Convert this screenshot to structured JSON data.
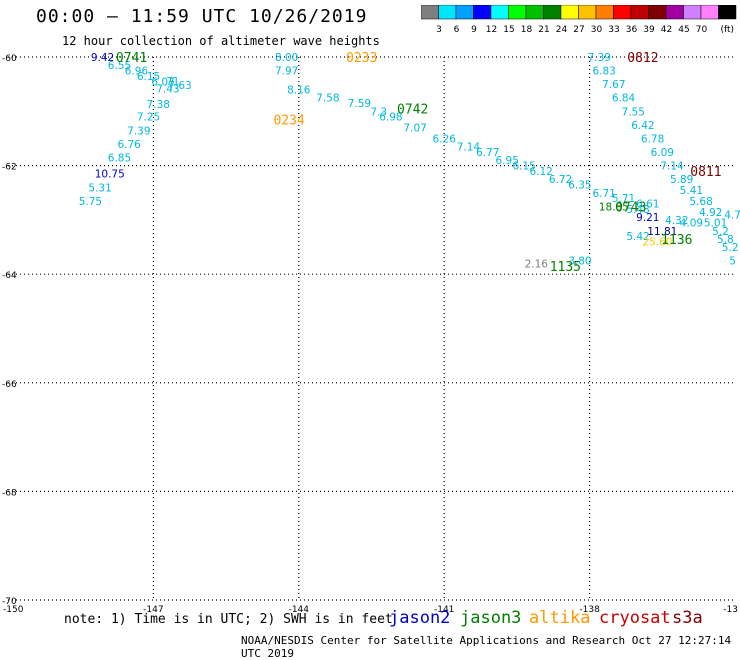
{
  "header": {
    "title": "00:00 – 11:59 UTC 10/26/2019",
    "subtitle": "12 hour collection of altimeter wave heights"
  },
  "legend": {
    "colors": [
      "#7f7f7f",
      "#00e5ff",
      "#00a0ff",
      "#0000ff",
      "#00ffff",
      "#00ff00",
      "#00c000",
      "#008000",
      "#ffff00",
      "#ffc000",
      "#ff8000",
      "#ff0000",
      "#c00000",
      "#800000",
      "#a000a0",
      "#d080ff",
      "#ff80ff",
      "#000000"
    ],
    "labels": [
      "3",
      "6",
      "9",
      "12",
      "15",
      "18",
      "21",
      "24",
      "27",
      "30",
      "33",
      "36",
      "39",
      "42",
      "45",
      "70"
    ],
    "unit": "(ft)"
  },
  "footer": {
    "note": "note: 1) Time is in UTC; 2) SWH is in feet",
    "credit": "NOAA/NESDIS Center for Satellite Applications and Research   Oct 27 12:27:14 UTC 2019"
  },
  "satellites": [
    {
      "name": "jason2",
      "color": "#0000cc"
    },
    {
      "name": "jason3",
      "color": "#008000"
    },
    {
      "name": "altika",
      "color": "#ff9900"
    },
    {
      "name": "cryosat",
      "color": "#cc0000"
    },
    {
      "name": "s3a",
      "color": "#800000"
    }
  ],
  "chart_data": {
    "type": "scatter",
    "title": "00:00 – 11:59 UTC 10/26/2019",
    "subtitle": "12 hour collection of altimeter wave heights",
    "xlim": [
      -150,
      -135
    ],
    "ylim": [
      -70,
      -60
    ],
    "x_ticks": [
      -147,
      -144,
      -141,
      -138
    ],
    "y_ticks": [
      -60,
      -62,
      -64,
      -66,
      -68,
      -70
    ],
    "x_tick_labels": [
      "-147",
      "-144",
      "-141",
      "-138"
    ],
    "y_tick_labels": [
      "-60",
      "-62",
      "-64",
      "-66",
      "-68",
      "-70"
    ],
    "corner_labels": {
      "x_start": "-150",
      "x_end": "-13"
    },
    "grid": true,
    "points": [
      {
        "lon": -148.05,
        "lat": -60.0,
        "v": "9.42",
        "c": "#0000cc"
      },
      {
        "lon": -147.7,
        "lat": -60.15,
        "v": "6.55",
        "c": "#00b8e0"
      },
      {
        "lon": -147.35,
        "lat": -60.25,
        "v": "6.96",
        "c": "#00b8e0"
      },
      {
        "lon": -147.1,
        "lat": -60.35,
        "v": "6.15",
        "c": "#00b8e0"
      },
      {
        "lon": -146.8,
        "lat": -60.45,
        "v": "6.07",
        "c": "#00b8e0"
      },
      {
        "lon": -146.6,
        "lat": -60.44,
        "v": "71",
        "c": "#00b8e0"
      },
      {
        "lon": -146.7,
        "lat": -60.58,
        "v": "7.43",
        "c": "#00b8e0"
      },
      {
        "lon": -146.45,
        "lat": -60.52,
        "v": "7.63",
        "c": "#00b8e0"
      },
      {
        "lon": -146.9,
        "lat": -60.87,
        "v": "7.38",
        "c": "#00b8e0"
      },
      {
        "lon": -147.1,
        "lat": -61.1,
        "v": "7.25",
        "c": "#00b8e0"
      },
      {
        "lon": -147.3,
        "lat": -61.35,
        "v": "7.39",
        "c": "#00b8e0"
      },
      {
        "lon": -147.5,
        "lat": -61.6,
        "v": "6.76",
        "c": "#00b8e0"
      },
      {
        "lon": -147.7,
        "lat": -61.85,
        "v": "6.85",
        "c": "#00b8e0"
      },
      {
        "lon": -147.9,
        "lat": -62.15,
        "v": "10.75",
        "c": "#0000cc"
      },
      {
        "lon": -148.1,
        "lat": -62.4,
        "v": "5.31",
        "c": "#00b8e0"
      },
      {
        "lon": -148.3,
        "lat": -62.65,
        "v": "5.75",
        "c": "#00b8e0"
      },
      {
        "lon": -144.25,
        "lat": -60.0,
        "v": "8.00",
        "c": "#00b8e0"
      },
      {
        "lon": -144.25,
        "lat": -60.25,
        "v": "7.97",
        "c": "#00b8e0"
      },
      {
        "lon": -144.0,
        "lat": -60.6,
        "v": "8.16",
        "c": "#00b8e0"
      },
      {
        "lon": -143.4,
        "lat": -60.75,
        "v": "7.58",
        "c": "#00b8e0"
      },
      {
        "lon": -142.75,
        "lat": -60.85,
        "v": "7.59",
        "c": "#00b8e0"
      },
      {
        "lon": -142.35,
        "lat": -61.0,
        "v": "7.3",
        "c": "#00b8e0"
      },
      {
        "lon": -142.1,
        "lat": -61.1,
        "v": "6.98",
        "c": "#00b8e0"
      },
      {
        "lon": -141.6,
        "lat": -61.3,
        "v": "7.07",
        "c": "#00b8e0"
      },
      {
        "lon": -141.0,
        "lat": -61.5,
        "v": "6.26",
        "c": "#00b8e0"
      },
      {
        "lon": -140.5,
        "lat": -61.65,
        "v": "7.14",
        "c": "#00b8e0"
      },
      {
        "lon": -140.1,
        "lat": -61.75,
        "v": "6.77",
        "c": "#00b8e0"
      },
      {
        "lon": -139.7,
        "lat": -61.9,
        "v": "6.95",
        "c": "#00b8e0"
      },
      {
        "lon": -139.35,
        "lat": -62.0,
        "v": "6.15",
        "c": "#00b8e0"
      },
      {
        "lon": -139.0,
        "lat": -62.1,
        "v": "6.12",
        "c": "#00b8e0"
      },
      {
        "lon": -138.6,
        "lat": -62.25,
        "v": "6.72",
        "c": "#00b8e0"
      },
      {
        "lon": -138.2,
        "lat": -62.35,
        "v": "6.35",
        "c": "#00b8e0"
      },
      {
        "lon": -137.7,
        "lat": -62.5,
        "v": "6.71",
        "c": "#00b8e0"
      },
      {
        "lon": -137.3,
        "lat": -62.6,
        "v": "5.71",
        "c": "#00b8e0"
      },
      {
        "lon": -136.8,
        "lat": -62.7,
        "v": "6.61",
        "c": "#00b8e0"
      },
      {
        "lon": -137.8,
        "lat": -60.0,
        "v": "7.39",
        "c": "#00b8e0"
      },
      {
        "lon": -137.7,
        "lat": -60.25,
        "v": "6.83",
        "c": "#00b8e0"
      },
      {
        "lon": -137.5,
        "lat": -60.5,
        "v": "7.67",
        "c": "#00b8e0"
      },
      {
        "lon": -137.3,
        "lat": -60.75,
        "v": "6.84",
        "c": "#00b8e0"
      },
      {
        "lon": -137.1,
        "lat": -61.0,
        "v": "7.55",
        "c": "#00b8e0"
      },
      {
        "lon": -136.9,
        "lat": -61.25,
        "v": "6.42",
        "c": "#00b8e0"
      },
      {
        "lon": -136.7,
        "lat": -61.5,
        "v": "6.78",
        "c": "#00b8e0"
      },
      {
        "lon": -136.5,
        "lat": -61.75,
        "v": "6.09",
        "c": "#00b8e0"
      },
      {
        "lon": -136.3,
        "lat": -62.0,
        "v": "7.14",
        "c": "#00b8e0"
      },
      {
        "lon": -136.1,
        "lat": -62.25,
        "v": "5.89",
        "c": "#00b8e0"
      },
      {
        "lon": -135.9,
        "lat": -62.45,
        "v": "5.41",
        "c": "#00b8e0"
      },
      {
        "lon": -135.7,
        "lat": -62.65,
        "v": "5.68",
        "c": "#00b8e0"
      },
      {
        "lon": -135.5,
        "lat": -62.85,
        "v": "4.92",
        "c": "#00b8e0"
      },
      {
        "lon": -135.4,
        "lat": -63.05,
        "v": "5.01",
        "c": "#00b8e0"
      },
      {
        "lon": -135.3,
        "lat": -63.2,
        "v": "5.2",
        "c": "#00b8e0"
      },
      {
        "lon": -135.2,
        "lat": -63.35,
        "v": "5.8",
        "c": "#00b8e0"
      },
      {
        "lon": -135.1,
        "lat": -63.5,
        "v": "5.2",
        "c": "#00b8e0"
      },
      {
        "lon": -135.05,
        "lat": -63.75,
        "v": "5",
        "c": "#00b8e0"
      },
      {
        "lon": -135.05,
        "lat": -62.9,
        "v": "4.7",
        "c": "#00b8e0"
      },
      {
        "lon": -136.2,
        "lat": -63.0,
        "v": "4.32",
        "c": "#00b8e0"
      },
      {
        "lon": -135.9,
        "lat": -63.05,
        "v": "4.09",
        "c": "#00b8e0"
      },
      {
        "lon": -136.8,
        "lat": -62.95,
        "v": "9.21",
        "c": "#0000cc"
      },
      {
        "lon": -136.5,
        "lat": -63.2,
        "v": "11.81",
        "c": "#000080"
      },
      {
        "lon": -137.5,
        "lat": -62.75,
        "v": "18.85",
        "c": "#008000"
      },
      {
        "lon": -137.0,
        "lat": -62.8,
        "v": "5.48",
        "c": "#00b8e0"
      },
      {
        "lon": -137.0,
        "lat": -63.3,
        "v": "5.42",
        "c": "#00b8e0"
      },
      {
        "lon": -136.6,
        "lat": -63.4,
        "v": "25.60",
        "c": "#ffcc00"
      },
      {
        "lon": -138.2,
        "lat": -63.75,
        "v": "3.80",
        "c": "#00b8e0"
      },
      {
        "lon": -139.1,
        "lat": -63.8,
        "v": "2.16",
        "c": "#7f7f7f"
      }
    ],
    "times": [
      {
        "lon": -147.45,
        "lat": -60.0,
        "t": "0741",
        "c": "#008000"
      },
      {
        "lon": -142.7,
        "lat": -60.0,
        "t": "0233",
        "c": "#ff9900"
      },
      {
        "lon": -144.2,
        "lat": -61.15,
        "t": "0234",
        "c": "#ff9900"
      },
      {
        "lon": -141.65,
        "lat": -60.95,
        "t": "0742",
        "c": "#008000"
      },
      {
        "lon": -136.9,
        "lat": -60.0,
        "t": "0812",
        "c": "#800000"
      },
      {
        "lon": -135.6,
        "lat": -62.1,
        "t": "0811",
        "c": "#800000"
      },
      {
        "lon": -137.15,
        "lat": -62.75,
        "t": "0743",
        "c": "#008000"
      },
      {
        "lon": -136.2,
        "lat": -63.35,
        "t": "1136",
        "c": "#008000"
      },
      {
        "lon": -138.5,
        "lat": -63.85,
        "t": "1135",
        "c": "#008000"
      }
    ]
  }
}
